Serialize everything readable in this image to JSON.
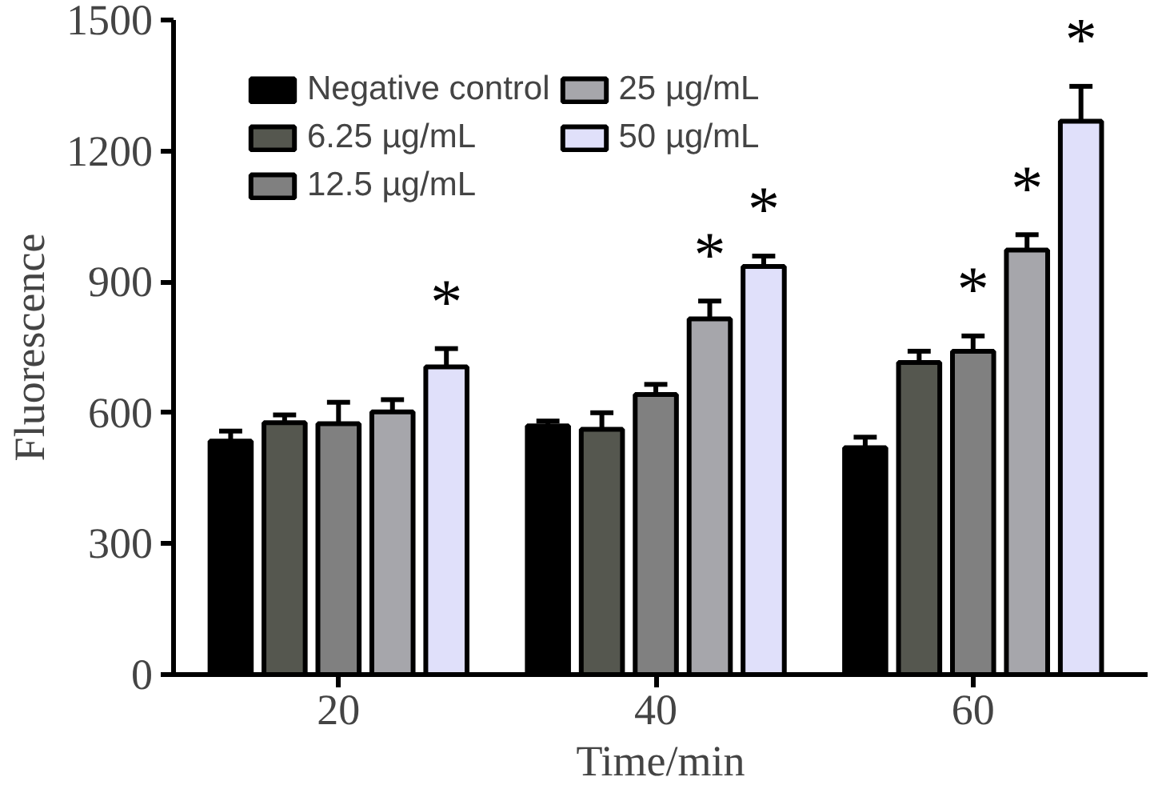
{
  "chart_data": {
    "type": "bar",
    "xlabel": "Time/min",
    "ylabel": "Fluorescence",
    "categories": [
      "20",
      "40",
      "60"
    ],
    "ylim": [
      0,
      1500
    ],
    "yticks": [
      0,
      300,
      600,
      900,
      1200,
      1500
    ],
    "grid": false,
    "legend": "top left",
    "series": [
      {
        "name": "Negative control",
        "color": "#000000",
        "values": [
          535,
          570,
          520
        ],
        "errors": [
          23,
          11,
          24
        ]
      },
      {
        "name": "6.25 µg/mL",
        "color": "#55574f",
        "values": [
          577,
          562,
          715
        ],
        "errors": [
          18,
          38,
          26
        ]
      },
      {
        "name": "12.5 µg/mL",
        "color": "#808080",
        "values": [
          575,
          642,
          741
        ],
        "errors": [
          49,
          23,
          35
        ],
        "value_labels": [
          null,
          null,
          "*"
        ]
      },
      {
        "name": "25 µg/mL",
        "color": "#a6a6ab",
        "values": [
          602,
          815,
          973
        ],
        "errors": [
          28,
          41,
          35
        ],
        "value_labels": [
          null,
          "*",
          "*"
        ]
      },
      {
        "name": "50 µg/mL",
        "color": "#e0e0fa",
        "values": [
          705,
          935,
          1268
        ],
        "errors": [
          42,
          24,
          80
        ],
        "value_labels": [
          "*",
          "*",
          "*"
        ]
      }
    ]
  }
}
